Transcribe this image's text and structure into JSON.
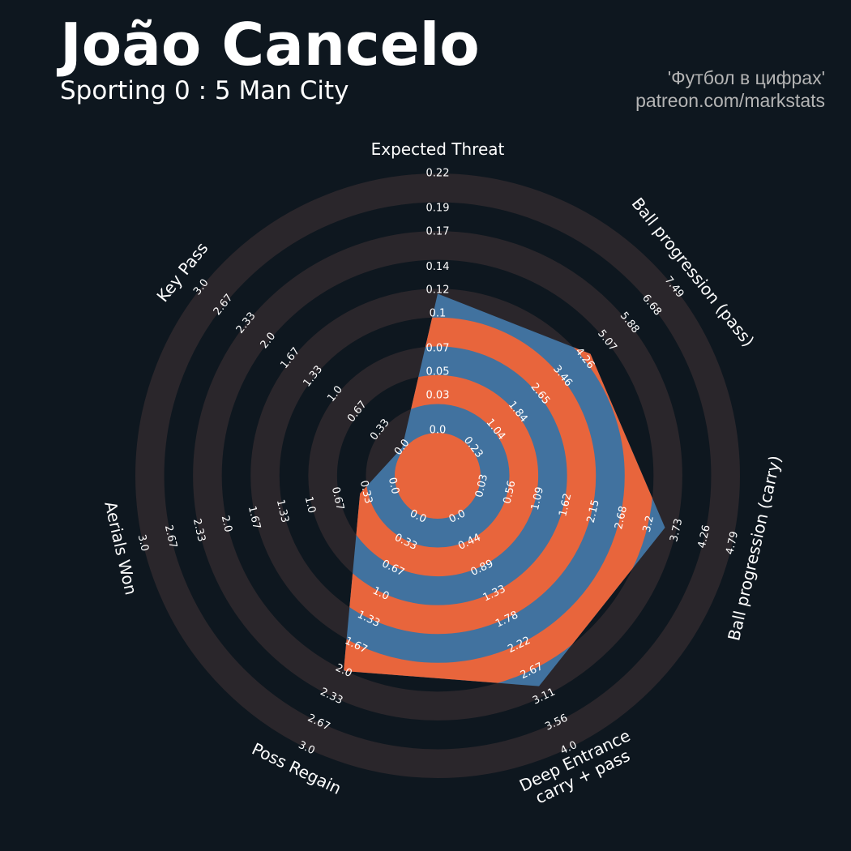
{
  "chart_data": {
    "type": "radar",
    "title": "João Cancelo",
    "subtitle": "Sporting 0 : 5 Man City",
    "credits": [
      "'Футбол в цифрах'",
      "patreon.com/markstats"
    ],
    "categories": [
      [
        "Expected Threat"
      ],
      [
        "Ball progression (pass)"
      ],
      [
        "Ball progression (carry)"
      ],
      [
        "Deep Entrance",
        "carry + pass"
      ],
      [
        "Poss Regain"
      ],
      [
        "Aerials Won"
      ],
      [
        "Key Pass"
      ]
    ],
    "values": [
      0.117,
      4.47,
      3.51,
      2.93,
      2.0,
      0.4,
      0
    ],
    "color": "#41729f",
    "alt_color": "#e8653c",
    "ring_color": "#2a262b",
    "axes": [
      {
        "lim": [
          0,
          0.22
        ],
        "ticks": [
          {
            "value": 0,
            "label": "0.0"
          },
          0.03,
          0.05,
          0.07,
          0.1,
          0.12,
          0.14,
          0.17,
          0.19,
          0.22
        ]
      },
      {
        "lim": [
          0.23,
          7.49
        ],
        "ticks": [
          0.23,
          1.04,
          1.84,
          2.65,
          3.46,
          4.26,
          5.07,
          5.88,
          6.68,
          7.49
        ]
      },
      {
        "lim": [
          0.03,
          4.79
        ],
        "ticks": [
          0.03,
          0.56,
          1.09,
          1.62,
          2.15,
          2.68,
          3.2,
          3.73,
          4.26,
          4.79
        ]
      },
      {
        "lim": [
          0,
          4
        ],
        "ticks": [
          {
            "value": 0,
            "label": "0.0"
          },
          0.44,
          0.89,
          1.33,
          1.78,
          2.22,
          2.67,
          3.11,
          3.56,
          {
            "value": 4,
            "label": "4.0"
          }
        ]
      },
      {
        "lim": [
          0,
          3
        ],
        "ticks": [
          {
            "value": 0,
            "label": "0.0"
          },
          0.33,
          0.67,
          {
            "value": 1,
            "label": "1.0"
          },
          1.33,
          1.67,
          {
            "value": 2,
            "label": "2.0"
          },
          2.33,
          2.67,
          {
            "value": 3,
            "label": "3.0"
          }
        ]
      },
      {
        "lim": [
          0,
          3
        ],
        "ticks": [
          {
            "value": 0,
            "label": "0.0"
          },
          0.33,
          0.67,
          {
            "value": 1,
            "label": "1.0"
          },
          1.33,
          1.67,
          {
            "value": 2,
            "label": "2.0"
          },
          2.33,
          2.67,
          {
            "value": 3,
            "label": "3.0"
          }
        ]
      },
      {
        "lim": [
          0,
          3
        ],
        "ticks": [
          {
            "value": 0,
            "label": "0.0"
          },
          0.33,
          0.67,
          {
            "value": 1,
            "label": "1.0"
          },
          1.33,
          1.67,
          {
            "value": 2,
            "label": "2.0"
          },
          2.33,
          2.67,
          {
            "value": 3,
            "label": "3.0"
          }
        ]
      }
    ]
  }
}
